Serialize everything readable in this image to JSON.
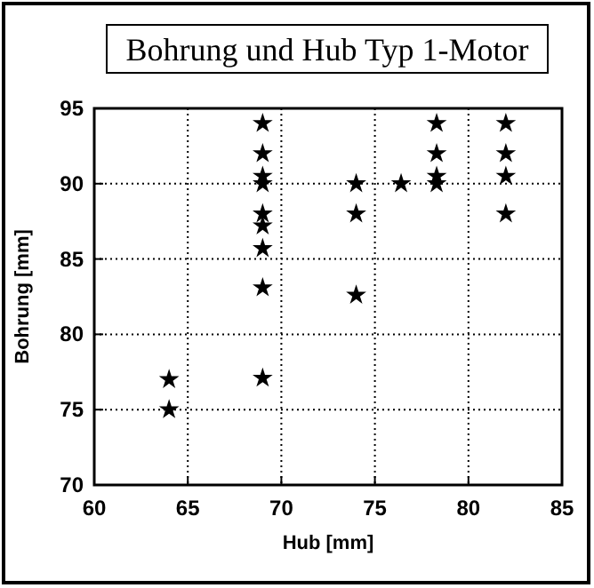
{
  "chart_data": {
    "type": "scatter",
    "title": "Bohrung und Hub Typ 1-Motor",
    "xlabel": "Hub [mm]",
    "ylabel": "Bohrung [mm]",
    "x": [
      64,
      64,
      69,
      69,
      69,
      69,
      69,
      69,
      69,
      69,
      69,
      74,
      74,
      74,
      76.4,
      78.3,
      78.3,
      78.3,
      78.3,
      82,
      82,
      82,
      82
    ],
    "values": [
      77,
      75,
      94,
      92,
      90.5,
      90,
      88,
      87.2,
      85.7,
      83.1,
      77.1,
      90,
      88,
      82.6,
      90,
      94,
      92,
      90.5,
      90,
      94,
      92,
      90.5,
      88
    ],
    "color": "#000000",
    "marker": "star",
    "xlim": [
      60,
      85
    ],
    "xticks": [
      60,
      65,
      70,
      75,
      80,
      85
    ],
    "ylim": [
      70,
      95
    ],
    "yticks": [
      70,
      75,
      80,
      85,
      90,
      95
    ],
    "grid": true
  }
}
